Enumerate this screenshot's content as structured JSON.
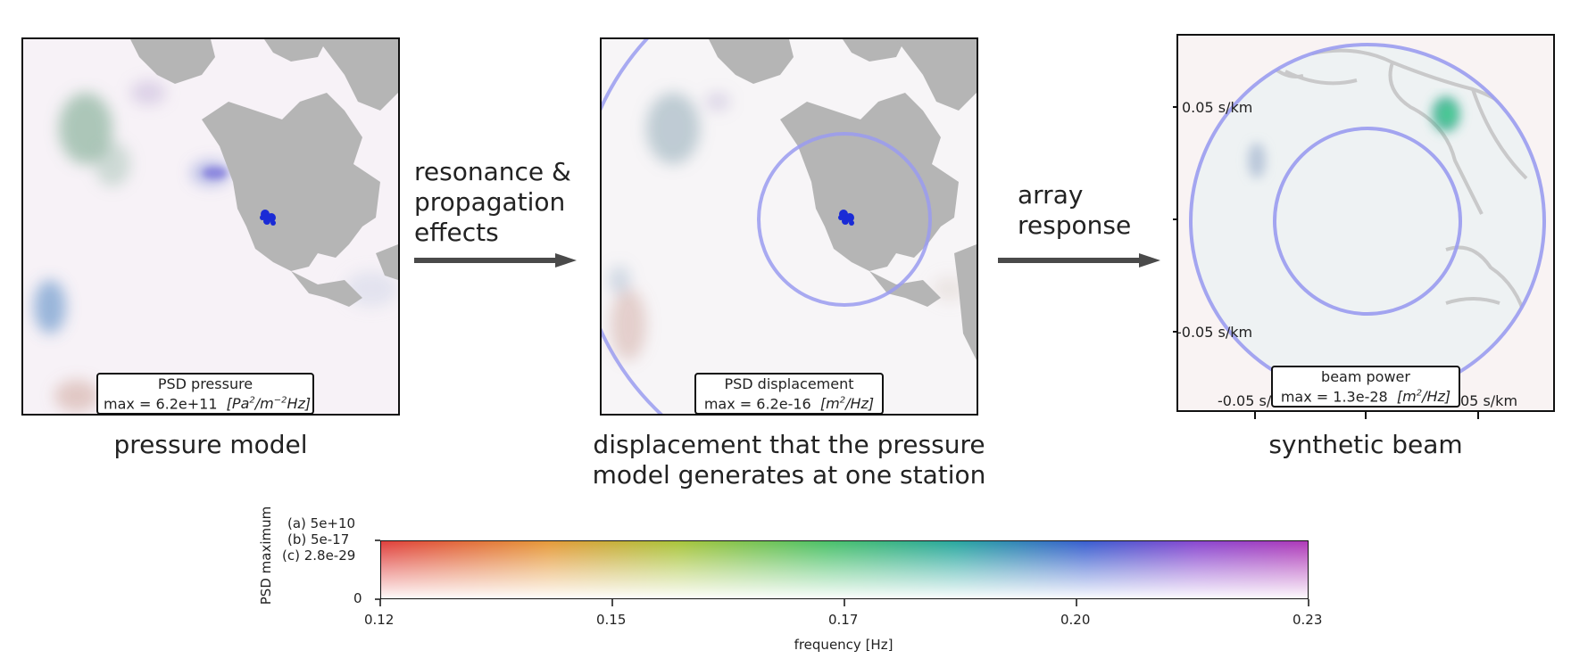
{
  "panels": {
    "pressure": {
      "box_title": "PSD pressure",
      "box_value": "max = 6.2e+11",
      "box_unit_html": "[Pa",
      "caption": "pressure model"
    },
    "displacement": {
      "box_title": "PSD displacement",
      "box_value": "max = 6.2e-16",
      "caption_line1": "displacement that the pressure",
      "caption_line2": "model generates at one station"
    },
    "beam": {
      "box_title": "beam power",
      "box_value": "max = 1.3e-28",
      "caption": "synthetic beam",
      "yticks": [
        "0.05 s/km",
        "-0.05 s/km"
      ],
      "xticks": [
        "-0.05 s/",
        "05 s/km"
      ]
    }
  },
  "flows": {
    "first_line1": "resonance &",
    "first_line2": "propagation",
    "first_line3": "effects",
    "second_line1": "array",
    "second_line2": "response"
  },
  "colorbar": {
    "ylabel": "PSD maximum",
    "yticks": [
      "(a) 5e+10",
      "(b) 5e-17",
      "(c) 2.8e-29",
      "0"
    ],
    "xlabel": "frequency [Hz]",
    "xticks": [
      "0.12",
      "0.15",
      "0.17",
      "0.20",
      "0.23"
    ]
  },
  "colors": {
    "land": "#b5b5b5",
    "ring": "#9a9cf0",
    "station": "#1a2bd6",
    "arrow": "#4a4a4a"
  }
}
